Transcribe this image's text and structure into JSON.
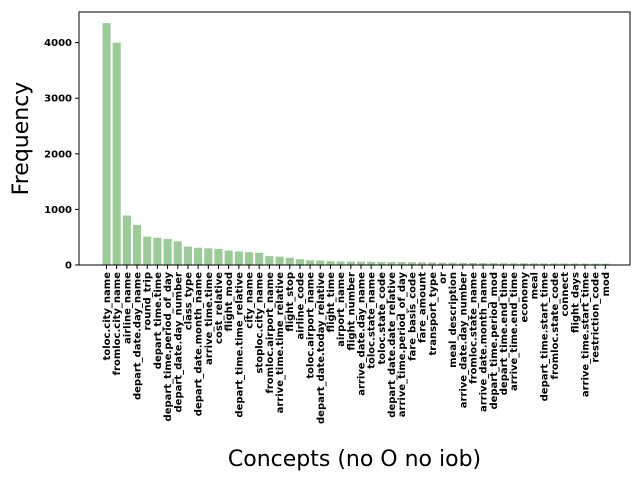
{
  "chart_data": {
    "type": "bar",
    "xlabel": "Concepts (no O no iob)",
    "ylabel": "Frequency",
    "ylim": [
      0,
      4550
    ],
    "yticks": [
      0,
      1000,
      2000,
      3000,
      4000
    ],
    "bar_color": "#9ccb98",
    "grid": false,
    "categories": [
      "toloc.city_name",
      "fromloc.city_name",
      "airline_name",
      "depart_date.day_name",
      "round_trip",
      "depart_time.time",
      "depart_time.period_of_day",
      "depart_date.day_number",
      "class_type",
      "depart_date.month_name",
      "arrive_time.time",
      "cost_relative",
      "flight_mod",
      "depart_time.time_relative",
      "city_name",
      "stoploc.city_name",
      "fromloc.airport_name",
      "arrive_time.time_relative",
      "flight_stop",
      "airline_code",
      "toloc.airport_name",
      "depart_date.today_relative",
      "flight_time",
      "airport_name",
      "flight_number",
      "arrive_date.day_name",
      "toloc.state_name",
      "toloc.state_code",
      "depart_date.date_relative",
      "arrive_time.period_of_day",
      "fare_basis_code",
      "fare_amount",
      "transport_type",
      "or",
      "meal_description",
      "arrive_date.day_number",
      "fromloc.state_name",
      "arrive_date.month_name",
      "depart_time.period_mod",
      "depart_time.end_time",
      "arrive_time.end_time",
      "economy",
      "meal",
      "depart_time.start_time",
      "fromloc.state_code",
      "connect",
      "flight_days",
      "arrive_time.start_time",
      "restriction_code",
      "mod"
    ],
    "values": [
      4350,
      4000,
      890,
      720,
      510,
      490,
      470,
      425,
      330,
      310,
      300,
      290,
      260,
      245,
      230,
      220,
      160,
      150,
      130,
      105,
      85,
      80,
      70,
      65,
      62,
      60,
      58,
      56,
      54,
      52,
      50,
      48,
      45,
      42,
      40,
      38,
      36,
      34,
      33,
      32,
      31,
      30,
      29,
      28,
      28,
      27,
      26,
      25,
      25,
      24
    ]
  }
}
